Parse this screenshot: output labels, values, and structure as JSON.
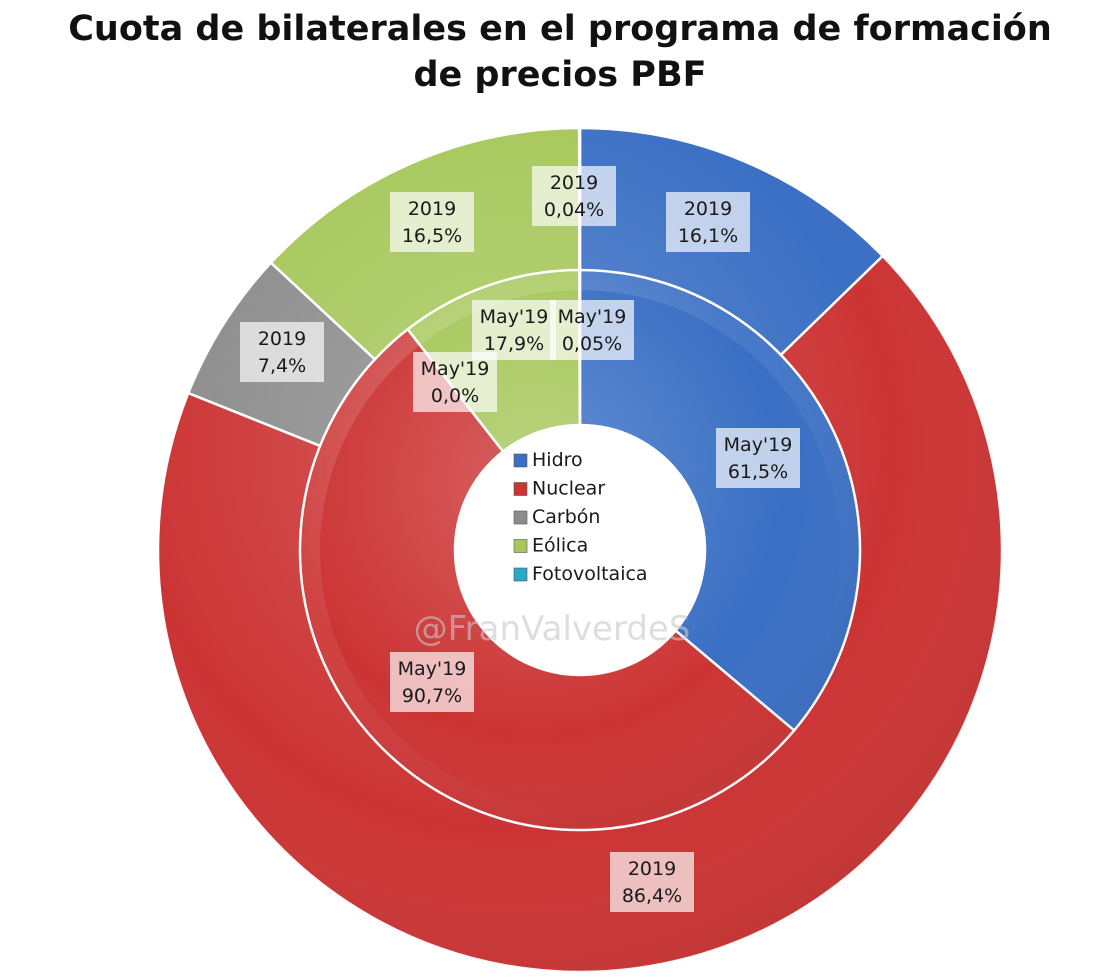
{
  "chart_data": {
    "type": "pie",
    "title": [
      "Cuota de bilaterales en el programa de formación",
      "de precios PBF"
    ],
    "categories": [
      "Hidro",
      "Nuclear",
      "Carbón",
      "Eólica",
      "Fotovoltaica"
    ],
    "colors": [
      "#3a6fc4",
      "#cc3434",
      "#8c8c8c",
      "#a6c75a",
      "#2aa7c9"
    ],
    "legend_position": "center",
    "series": [
      {
        "name": "2019",
        "ring": "outer",
        "values": [
          16.1,
          86.4,
          7.4,
          16.5,
          0.04
        ],
        "labels": [
          "2019\n16,1%",
          "2019\n86,4%",
          "2019\n7,4%",
          "2019\n16,5%",
          "2019\n0,04%"
        ]
      },
      {
        "name": "May'19",
        "ring": "inner",
        "values": [
          61.5,
          90.7,
          0.0,
          17.9,
          0.05
        ],
        "labels": [
          "May'19\n61,5%",
          "May'19\n90,7%",
          "May'19\n0,0%",
          "May'19\n17,9%",
          "May'19\n0,05%"
        ]
      }
    ]
  },
  "watermark": "@FranValverdeS"
}
